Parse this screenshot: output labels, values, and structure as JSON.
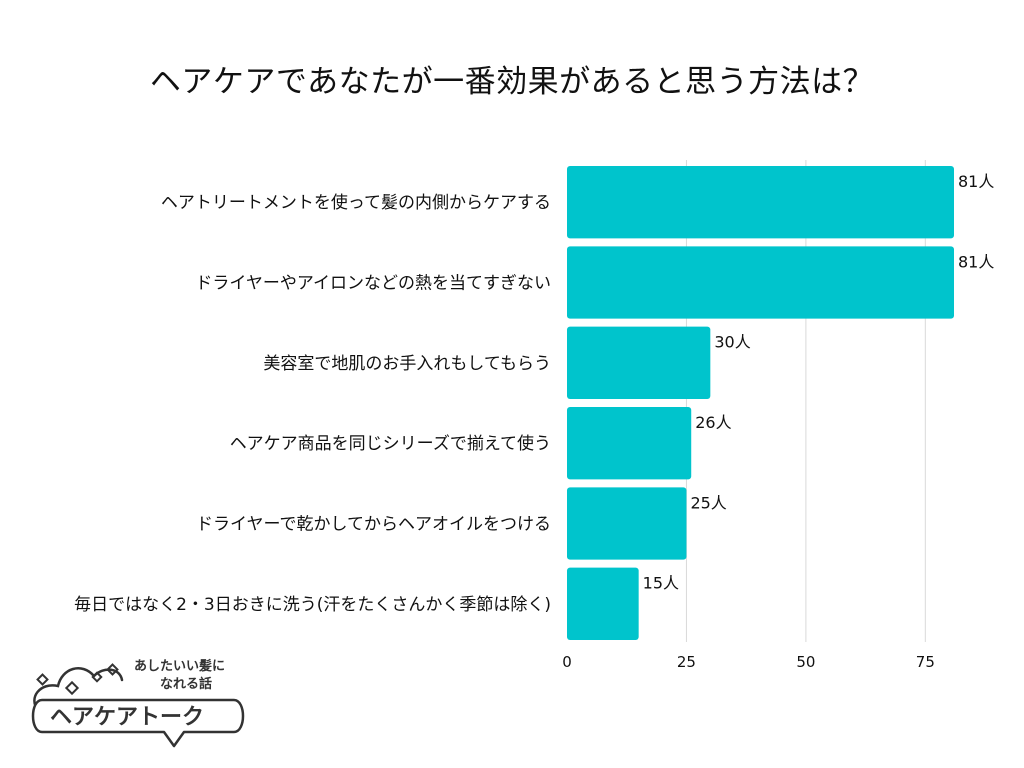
{
  "chart_data": {
    "type": "bar",
    "orientation": "horizontal",
    "title": "ヘアケアであなたが一番効果があると思う方法は？",
    "xlabel": "",
    "ylabel": "",
    "categories": [
      "ヘアトリートメントを使って髪の内側からケアする",
      "ドライヤーやアイロンなどの熱を当てすぎない",
      "美容室で地肌のお手入れもしてもらう",
      "ヘアケア商品を同じシリーズで揃えて使う",
      "ドライヤーで乾かしてからヘアオイルをつける",
      "毎日ではなく2・3日おきに洗う(汗をたくさんかく季節は除く)"
    ],
    "values": [
      81,
      81,
      30,
      26,
      25,
      15
    ],
    "value_labels": [
      "81人",
      "81人",
      "30人",
      "26人",
      "25人",
      "15人"
    ],
    "xlim": [
      0,
      81
    ],
    "xticks": [
      0,
      25,
      50,
      75
    ],
    "xtick_labels": [
      "0",
      "25",
      "50",
      "75"
    ],
    "grid": true,
    "bar_color": "#00c4cc",
    "grid_color": "#d9d9d9"
  },
  "logo": {
    "tagline_line1": "あしたいい髪に",
    "tagline_line2": "なれる話",
    "name": "ヘアケアトーク"
  }
}
